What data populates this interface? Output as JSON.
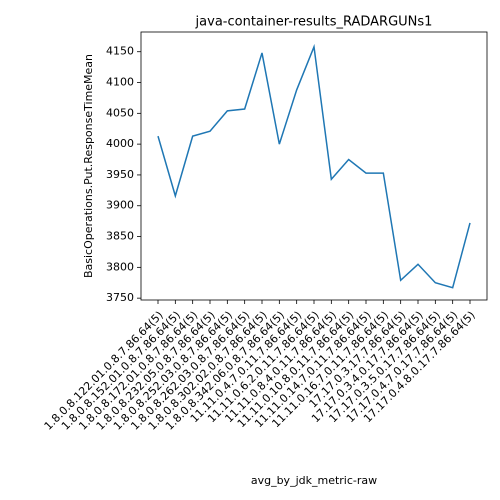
{
  "chart_data": {
    "type": "line",
    "title": "java-container-results_RADARGUNs1",
    "xlabel": "avg_by_jdk_metric-raw",
    "ylabel": "BasicOperations.Put.ResponseTimeMean",
    "categories": [
      "1.8.0.8.122.01.0.8.7.86.64(5)",
      "1.8.0.8.152.01.0.8.7.86.64(5)",
      "1.8.0.8.172.01.0.8.7.86.64(5)",
      "1.8.0.8.232.05.0.8.7.86.64(5)",
      "1.8.0.8.252.03.0.8.7.86.64(5)",
      "1.8.0.8.262.03.0.8.7.86.64(5)",
      "1.8.0.8.302.02.0.8.7.86.64(5)",
      "1.8.0.8.342.06.0.8.7.86.64(5)",
      "11.11.0.4.7.0.11.7.86.64(5)",
      "11.11.0.6.2.0.11.7.86.64(5)",
      "11.11.0.8.4.0.11.7.86.64(5)",
      "11.11.0.10.8.0.11.7.86.64(5)",
      "11.11.0.14.7.0.11.7.86.64(5)",
      "11.11.0.16.7.0.11.7.86.64(5)",
      "17.17.0.3.17.7.86.64(5)",
      "17.17.0.3.4.0.17.7.86.64(5)",
      "17.17.0.3.5.0.17.7.86.64(5)",
      "17.17.0.4.7.0.17.7.86.64(5)",
      "17.17.0.4.8.0.17.7.86.64(5)"
    ],
    "series": [
      {
        "name": "BasicOperations.Put.ResponseTimeMean",
        "color": "#1f77b4",
        "values": [
          4013,
          3916,
          4013,
          4021,
          4054,
          4057,
          4148,
          4000,
          4088,
          4158,
          3943,
          3975,
          3953,
          3953,
          3779,
          3805,
          3775,
          3767,
          3872
        ]
      }
    ],
    "ylim": [
      3747,
      4182
    ],
    "yticks": [
      3750,
      3800,
      3850,
      3900,
      3950,
      4000,
      4050,
      4100,
      4150
    ]
  }
}
